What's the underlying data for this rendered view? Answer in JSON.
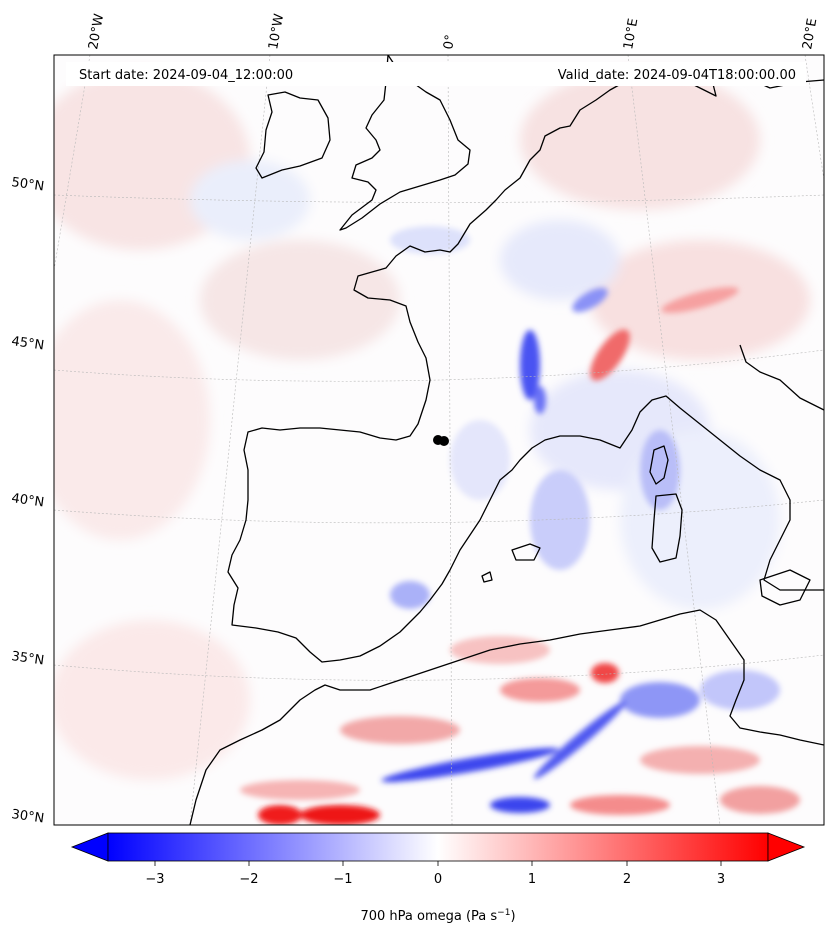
{
  "map": {
    "header": {
      "start_date": "Start date: 2024-09-04_12:00:00",
      "valid_date": "Valid_date: 2024-09-04T18:00:00.00"
    },
    "lon_labels": [
      "20°W",
      "10°W",
      "0°",
      "10°E",
      "20°E"
    ],
    "lat_labels": [
      "50°N",
      "45°N",
      "40°N",
      "35°N",
      "30°N"
    ],
    "gridlines": "on (dotted)",
    "field": "700 hPa omega",
    "colorbar": {
      "ticks": [
        "−3",
        "−2",
        "−1",
        "0",
        "1",
        "2",
        "3"
      ],
      "label_prefix": "700 hPa omega (Pa s",
      "label_exp": "−1",
      "label_suffix": ")",
      "colormap": "bwr",
      "min_color": "#0000ff",
      "mid_color": "#ffffff",
      "max_color": "#ff0000"
    }
  }
}
